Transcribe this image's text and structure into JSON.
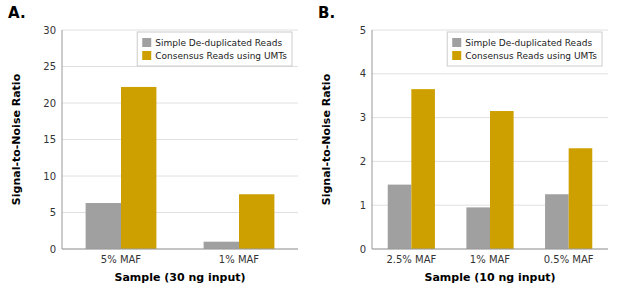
{
  "chart_data": [
    {
      "type": "bar",
      "title": "A.",
      "categories": [
        "5% MAF",
        "1% MAF"
      ],
      "series": [
        {
          "name": "Simple De-duplicated Reads",
          "color": "#A0A0A0",
          "values": [
            6.3,
            1.0
          ]
        },
        {
          "name": "Consensus Reads using UMTs",
          "color": "#CDA000",
          "values": [
            22.2,
            7.5
          ]
        }
      ],
      "x_label": "Sample (30 ng input)",
      "y_label": "Signal-to-Noise Ratio",
      "ylim": [
        0,
        30
      ],
      "yticks": [
        0,
        5,
        10,
        15,
        20,
        25,
        30
      ],
      "grid": true,
      "legend": "upper right"
    },
    {
      "type": "bar",
      "title": "B.",
      "categories": [
        "2.5% MAF",
        "1% MAF",
        "0.5% MAF"
      ],
      "series": [
        {
          "name": "Simple De-duplicated Reads",
          "color": "#A0A0A0",
          "values": [
            1.47,
            0.95,
            1.25
          ]
        },
        {
          "name": "Consensus Reads using UMTs",
          "color": "#CDA000",
          "values": [
            3.65,
            3.15,
            2.3
          ]
        }
      ],
      "x_label": "Sample (10 ng input)",
      "y_label": "Signal-to-Noise Ratio",
      "ylim": [
        0,
        5
      ],
      "yticks": [
        0,
        1,
        2,
        3,
        4,
        5
      ],
      "grid": true,
      "legend": "upper right"
    }
  ]
}
